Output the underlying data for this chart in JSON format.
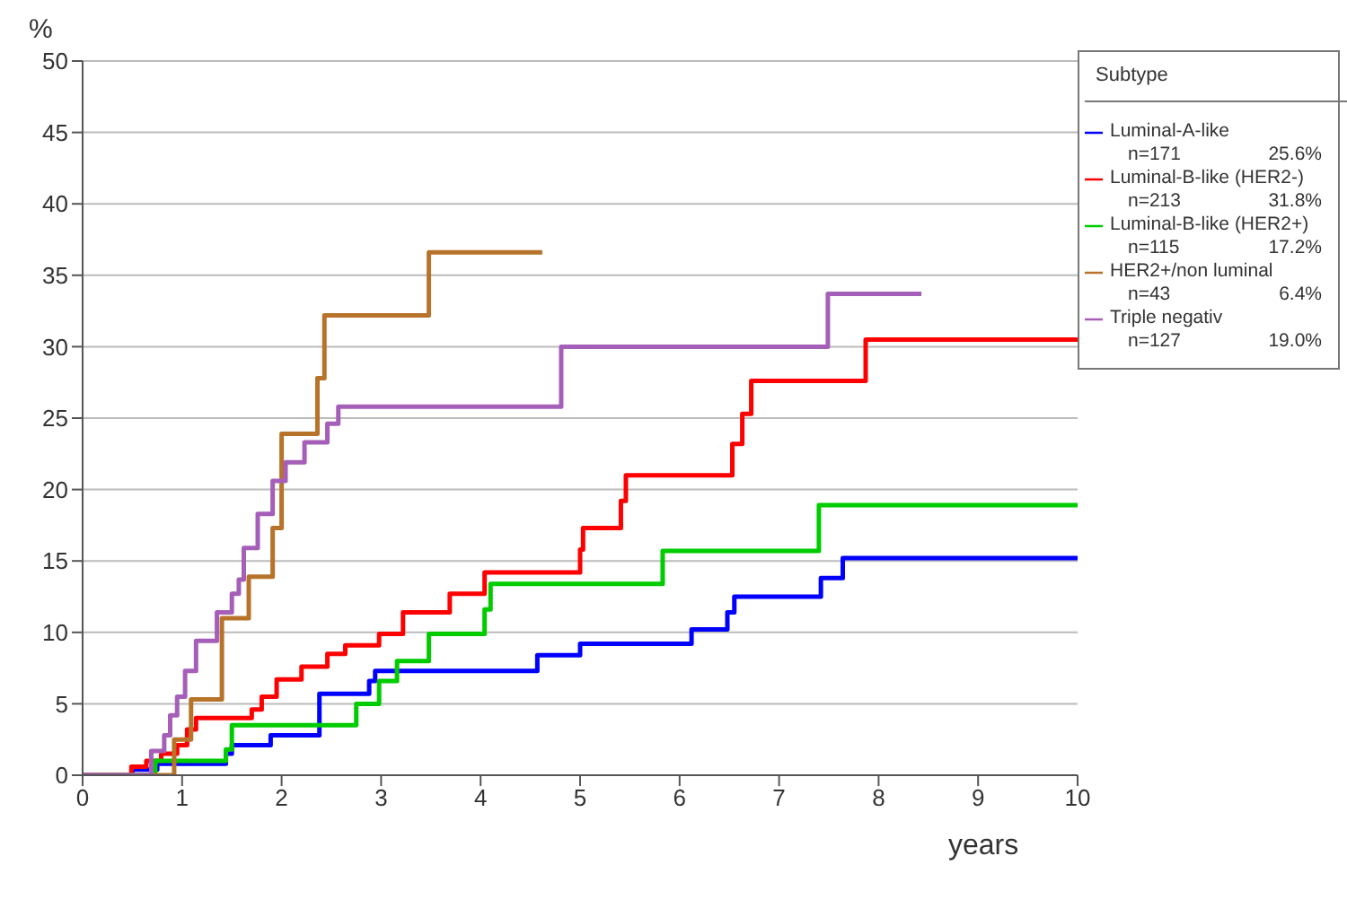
{
  "chart_data": {
    "type": "step",
    "xlabel": "years",
    "ylabel": "%",
    "legend_title": "Subtype",
    "legend": "right",
    "grid": "y",
    "marker": "none",
    "line_style": "solid",
    "xlim": [
      0,
      10
    ],
    "xticks": [
      0,
      1,
      2,
      3,
      4,
      5,
      6,
      7,
      8,
      9,
      10
    ],
    "ylim": [
      0,
      50
    ],
    "yticks": [
      0,
      5,
      10,
      15,
      20,
      25,
      30,
      35,
      40,
      45,
      50
    ],
    "series": [
      {
        "name": "Luminal-A-like",
        "color": "#0000ff",
        "x": [
          0,
          0.5,
          0.75,
          1.44,
          1.5,
          1.89,
          2.38,
          2.88,
          2.94,
          4.57,
          5.0,
          6.12,
          6.48,
          6.55,
          7.42,
          7.64,
          10
        ],
        "values": [
          0,
          0.4,
          0.8,
          1.5,
          2.1,
          2.8,
          5.7,
          6.6,
          7.3,
          8.4,
          9.2,
          10.2,
          11.4,
          12.5,
          13.8,
          15.2,
          15.2
        ]
      },
      {
        "name": "Luminal-B-like (HER2-)",
        "color": "#ff0000",
        "x": [
          0,
          0.49,
          0.64,
          0.79,
          0.95,
          1.05,
          1.14,
          1.7,
          1.8,
          1.95,
          2.2,
          2.46,
          2.64,
          2.98,
          3.22,
          3.69,
          4.04,
          5.0,
          5.03,
          5.41,
          5.46,
          6.53,
          6.63,
          6.72,
          7.87,
          10
        ],
        "values": [
          0,
          0.6,
          1.0,
          1.5,
          2.1,
          3.2,
          4.0,
          4.6,
          5.5,
          6.7,
          7.6,
          8.5,
          9.1,
          9.9,
          11.4,
          12.7,
          14.2,
          15.8,
          17.3,
          19.2,
          21.0,
          23.2,
          25.3,
          27.6,
          30.5,
          30.5
        ]
      },
      {
        "name": "Luminal-B-like (HER2+)",
        "color": "#00cc00",
        "x": [
          0,
          0.73,
          1.44,
          1.5,
          2.75,
          2.98,
          3.16,
          3.48,
          4.04,
          4.1,
          5.83,
          7.4,
          10
        ],
        "values": [
          0,
          1.0,
          1.8,
          3.5,
          5.0,
          6.6,
          8.0,
          9.9,
          11.6,
          13.4,
          15.7,
          18.9,
          18.9
        ]
      },
      {
        "name": "HER2+/non luminal",
        "color": "#b8732a",
        "x": [
          0,
          0.92,
          1.09,
          1.4,
          1.67,
          1.91,
          2.0,
          2.36,
          2.43,
          3.48,
          4.62
        ],
        "values": [
          0,
          2.5,
          5.3,
          11.0,
          13.9,
          17.3,
          23.9,
          27.8,
          32.2,
          36.6,
          36.6
        ]
      },
      {
        "name": "Triple negativ",
        "color": "#a65fb8",
        "x": [
          0,
          0.69,
          0.82,
          0.88,
          0.95,
          1.03,
          1.14,
          1.35,
          1.5,
          1.57,
          1.62,
          1.76,
          1.91,
          2.04,
          2.23,
          2.46,
          2.57,
          4.81,
          7.49,
          8.43
        ],
        "values": [
          0,
          1.7,
          2.8,
          4.2,
          5.5,
          7.3,
          9.4,
          11.4,
          12.7,
          13.7,
          15.9,
          18.3,
          20.6,
          21.9,
          23.3,
          24.6,
          25.8,
          30.0,
          33.7,
          33.7
        ]
      }
    ],
    "annotations": [
      "n=171",
      "25.6%",
      "n=213",
      "31.8%",
      "n=115",
      "17.2%",
      "n=43",
      "6.4%",
      "n=127",
      "19.0%"
    ]
  }
}
